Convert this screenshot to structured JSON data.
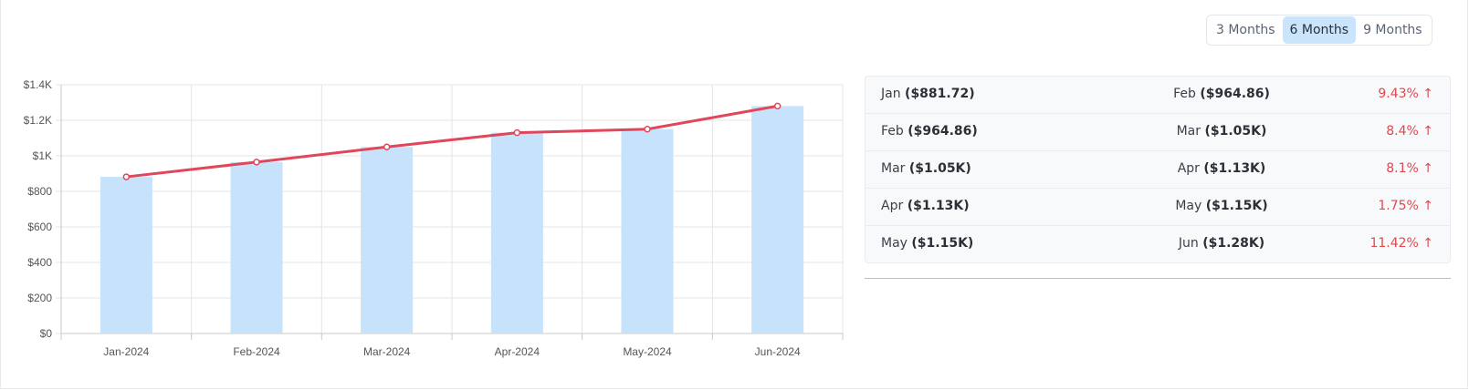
{
  "period_toggle": {
    "options": [
      "3 Months",
      "6 Months",
      "9 Months"
    ],
    "selected": "6 Months"
  },
  "comparisons": [
    {
      "from_month": "Jan",
      "from_value": "($881.72)",
      "to_month": "Feb",
      "to_value": "($964.86)",
      "change": "9.43% ↑"
    },
    {
      "from_month": "Feb",
      "from_value": "($964.86)",
      "to_month": "Mar",
      "to_value": "($1.05K)",
      "change": "8.4% ↑"
    },
    {
      "from_month": "Mar",
      "from_value": "($1.05K)",
      "to_month": "Apr",
      "to_value": "($1.13K)",
      "change": "8.1% ↑"
    },
    {
      "from_month": "Apr",
      "from_value": "($1.13K)",
      "to_month": "May",
      "to_value": "($1.15K)",
      "change": "1.75% ↑"
    },
    {
      "from_month": "May",
      "from_value": "($1.15K)",
      "to_month": "Jun",
      "to_value": "($1.28K)",
      "change": "11.42% ↑"
    }
  ],
  "colors": {
    "bar": "#c6e3fb",
    "line": "#e0475a",
    "change_up": "#e0484e",
    "grid": "#e4e4e4",
    "active_toggle": "#c9e4fb"
  },
  "chart_data": {
    "type": "bar",
    "categories": [
      "Jan-2024",
      "Feb-2024",
      "Mar-2024",
      "Apr-2024",
      "May-2024",
      "Jun-2024"
    ],
    "series": [
      {
        "type": "bar",
        "values": [
          881.72,
          964.86,
          1050,
          1130,
          1150,
          1280
        ]
      },
      {
        "type": "line",
        "values": [
          881.72,
          964.86,
          1050,
          1130,
          1150,
          1280
        ]
      }
    ],
    "ylim": [
      0,
      1400
    ],
    "yticks": [
      0,
      200,
      400,
      600,
      800,
      1000,
      1200,
      1400
    ],
    "ytick_labels": [
      "$0",
      "$200",
      "$400",
      "$600",
      "$800",
      "$1K",
      "$1.2K",
      "$1.4K"
    ],
    "grid": true
  }
}
